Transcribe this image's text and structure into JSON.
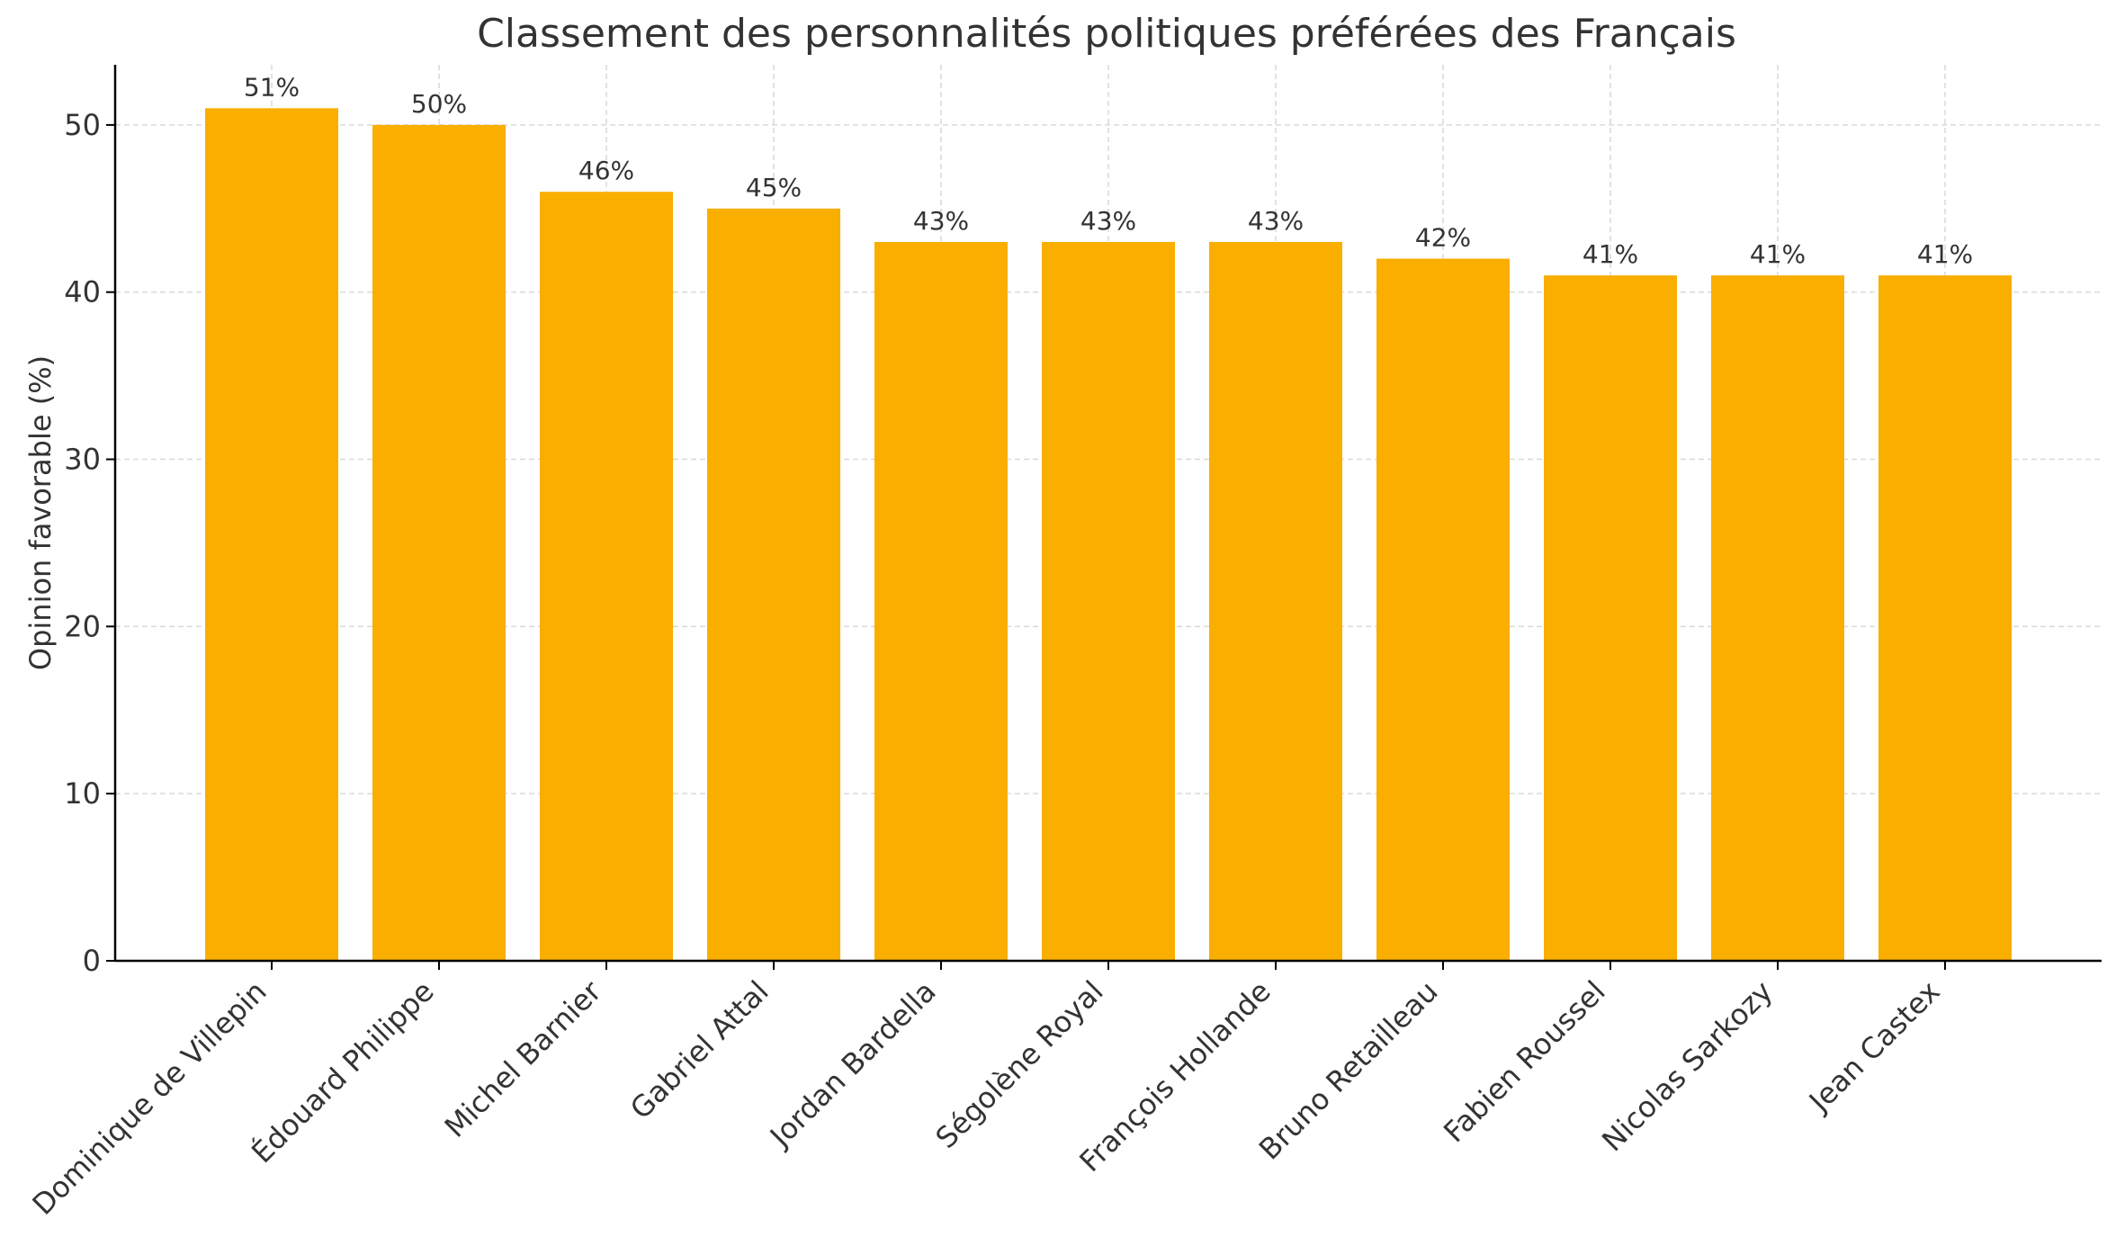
{
  "chart_data": {
    "type": "bar",
    "title": "Classement des personnalités politiques préférées des Français",
    "xlabel": "",
    "ylabel": "Opinion favorable (%)",
    "ylim": [
      0,
      53.6
    ],
    "yticks": [
      0,
      10,
      20,
      30,
      40,
      50
    ],
    "grid": true,
    "categories": [
      "Dominique de Villepin",
      "Édouard Philippe",
      "Michel Barnier",
      "Gabriel Attal",
      "Jordan Bardella",
      "Ségolène Royal",
      "François Hollande",
      "Bruno Retailleau",
      "Fabien Roussel",
      "Nicolas Sarkozy",
      "Jean Castex"
    ],
    "values": [
      51,
      50,
      46,
      45,
      43,
      43,
      43,
      42,
      41,
      41,
      41
    ],
    "data_labels": [
      "51%",
      "50%",
      "46%",
      "45%",
      "43%",
      "43%",
      "43%",
      "42%",
      "41%",
      "41%",
      "41%"
    ],
    "bar_color": "#F9AE00"
  }
}
